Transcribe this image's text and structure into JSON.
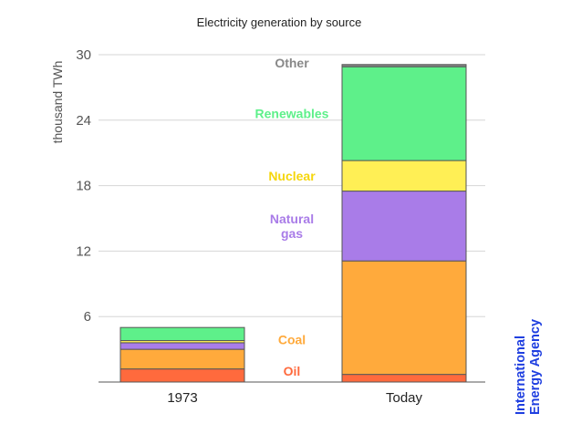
{
  "chart_data": {
    "type": "bar",
    "stacked": true,
    "title": "Electricity generation by source",
    "xlabel": "",
    "ylabel": "thousand TWh",
    "ylim": [
      0,
      30
    ],
    "yticks": [
      6,
      12,
      18,
      24,
      30
    ],
    "grid": true,
    "categories": [
      "1973",
      "Today"
    ],
    "series": [
      {
        "name": "Oil",
        "color": "#ff6a3d",
        "values": [
          1.2,
          0.7
        ]
      },
      {
        "name": "Coal",
        "color": "#ffaa3c",
        "values": [
          1.8,
          10.4
        ]
      },
      {
        "name": "Natural gas",
        "color": "#a97ce8",
        "values": [
          0.6,
          6.4
        ]
      },
      {
        "name": "Nuclear",
        "color": "#ffef55",
        "values": [
          0.2,
          2.8
        ]
      },
      {
        "name": "Renewables",
        "color": "#5ef08a",
        "values": [
          1.2,
          8.6
        ]
      },
      {
        "name": "Other",
        "color": "#888888",
        "values": [
          0.0,
          0.2
        ]
      }
    ],
    "series_label_lines": {
      "Natural gas": [
        "Natural",
        "gas"
      ]
    },
    "source": {
      "lines": [
        "International",
        "Energy Agency"
      ]
    }
  }
}
